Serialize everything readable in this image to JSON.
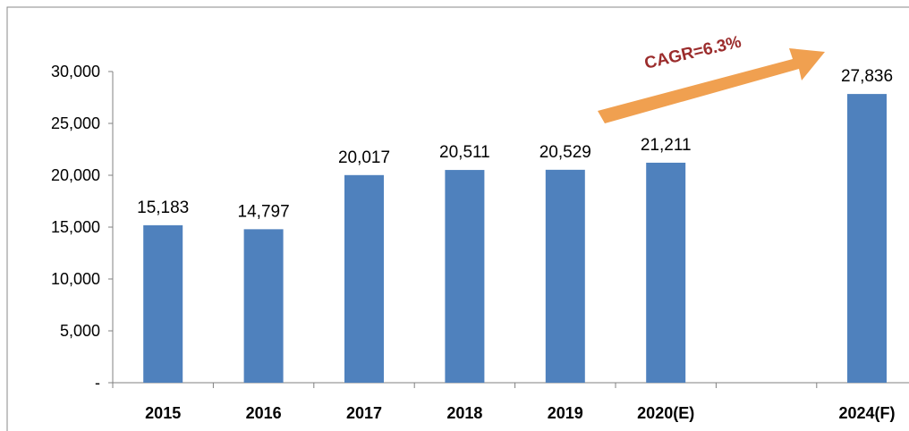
{
  "chart_data": {
    "type": "bar",
    "categories": [
      "2015",
      "2016",
      "2017",
      "2018",
      "2019",
      "2020(E)",
      "",
      "2024(F)"
    ],
    "values": [
      15183,
      14797,
      20017,
      20511,
      20529,
      21211,
      null,
      27836
    ],
    "data_labels": [
      "15,183",
      "14,797",
      "20,017",
      "20,511",
      "20,529",
      "21,211",
      "",
      "27,836"
    ],
    "y_ticks": [
      0,
      5000,
      10000,
      15000,
      20000,
      25000,
      30000
    ],
    "y_tick_labels": [
      "-",
      "5,000",
      "10,000",
      "15,000",
      "20,000",
      "25,000",
      "30,000"
    ],
    "ylim": [
      0,
      30000
    ],
    "title": "",
    "xlabel": "",
    "ylabel": "",
    "grid": false,
    "legend": "none",
    "bar_color": "#4F81BD",
    "annotation": {
      "text": "CAGR=6.3%",
      "text_color": "#9B2C2C",
      "arrow_color": "#F0A050"
    }
  }
}
